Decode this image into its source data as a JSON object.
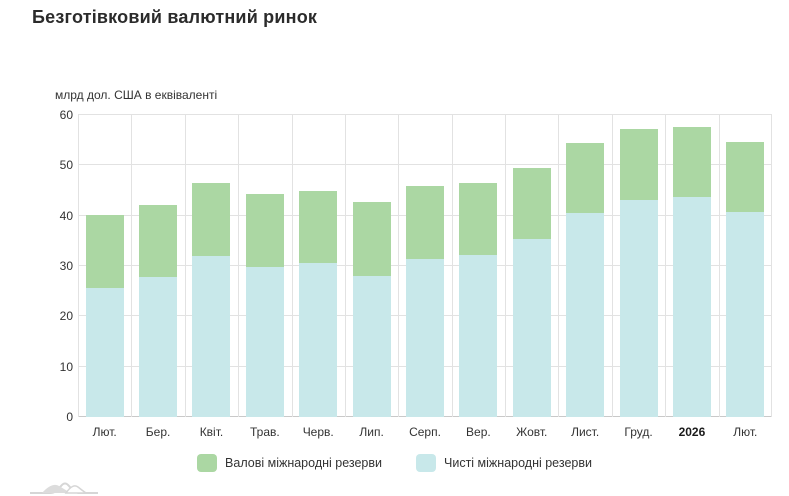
{
  "page": {
    "title": "Безготівковий валютний ринок"
  },
  "chart_data": {
    "type": "bar",
    "title": "Безготівковий валютний ринок",
    "ylabel": "млрд дол. США в еквіваленті",
    "xlabel": "",
    "ylim": [
      0,
      60
    ],
    "yticks": [
      0,
      10,
      20,
      30,
      40,
      50,
      60
    ],
    "grid": true,
    "legend_position": "bottom",
    "bar_style": "overlay",
    "categories": [
      "Лют.",
      "Бер.",
      "Квіт.",
      "Трав.",
      "Черв.",
      "Лип.",
      "Серп.",
      "Вер.",
      "Жовт.",
      "Лист.",
      "Груд.",
      "2026",
      "Лют."
    ],
    "emphasized_category": "2026",
    "series": [
      {
        "name": "Валові міжнародні резерви",
        "color": "#abd7a3",
        "values": [
          40.1,
          42.2,
          46.5,
          44.4,
          44.9,
          42.8,
          45.9,
          46.4,
          49.4,
          54.5,
          57.2,
          57.6,
          54.6
        ]
      },
      {
        "name": "Чисті міжнародні резерви",
        "color": "#c8e8ea",
        "values": [
          25.6,
          27.8,
          32.0,
          29.8,
          30.5,
          28.1,
          31.3,
          32.1,
          35.3,
          40.5,
          43.1,
          43.8,
          40.8
        ]
      }
    ]
  },
  "style": {
    "grid_color": "#e2e2e2",
    "axis_color": "#c9c9c9",
    "text_color": "#333333",
    "logo_color": "#d6d6d6"
  }
}
